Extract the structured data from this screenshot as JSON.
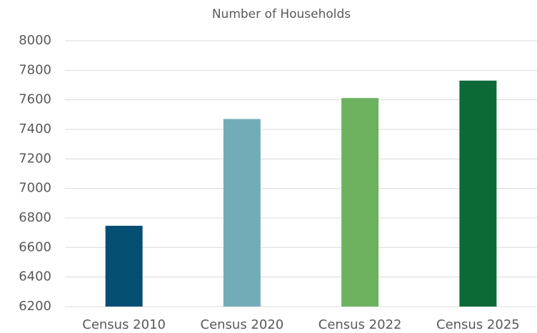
{
  "chart_data": {
    "type": "bar",
    "title": "Number of Households",
    "categories": [
      "Census 2010",
      "Census 2020",
      "Census 2022",
      "Census 2025"
    ],
    "values": [
      6747,
      7470,
      7612,
      7730
    ],
    "colors": [
      "#044e74",
      "#72adb7",
      "#6cb25f",
      "#0d6a38"
    ],
    "ylim": [
      6200,
      8000
    ],
    "yticks": [
      6200,
      6400,
      6600,
      6800,
      7000,
      7200,
      7400,
      7600,
      7800,
      8000
    ],
    "grid": true
  }
}
